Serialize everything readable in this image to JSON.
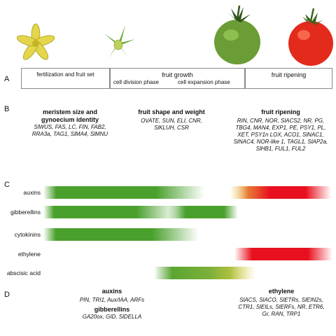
{
  "panels": {
    "a": "A",
    "b": "B",
    "c": "C",
    "d": "D"
  },
  "stages": {
    "fertilization": "fertilization and fruit set",
    "growth": "fruit growth",
    "division": "cell division phase",
    "expansion": "cell expansion phase",
    "ripening": "fruit ripening"
  },
  "panel_b": {
    "meristem_title_1": "meristem size and",
    "meristem_title_2": "gynoecium identity",
    "meristem_genes_1": "SlWUS, FAS, LC, FIN, FAB2,",
    "meristem_genes_2": "RRA3a, TAG1, SlMA4, SlMNU",
    "shape_title": "fruit shape and weight",
    "shape_genes_1": "OVATE, SUN, ELI, CNR,",
    "shape_genes_2": "SlKLUH, CSR",
    "ripening_title": "fruit ripening",
    "ripening_genes_1": "RIN, CNR, NOR, SlACS2, NR, PG,",
    "ripening_genes_2": "TBG4, MAN4, EXP1, PE, PSY1, PL,",
    "ripening_genes_3": "XET, PSY1n LOX, ACO1, SlNAC1,",
    "ripening_genes_4": "SlNAC4, NOR-like 1, TAGL1, SlAP2a,",
    "ripening_genes_5": "SlHB1, FUL1, FUL2"
  },
  "hormones": {
    "auxins": "auxins",
    "gibberellins": "gibberellins",
    "cytokinins": "cytokinins",
    "ethylene": "ethylene",
    "abscisic": "abscisic acid"
  },
  "colors": {
    "green": "#4aa02c",
    "yellow": "#e8d44a",
    "red": "#e8101e",
    "frame": "#888888"
  },
  "panel_d": {
    "auxins_title": "auxins",
    "auxins_genes": "PIN, TRI1, Aux/IAA, ARFs",
    "gib_title": "gibberellins",
    "gib_genes": "GA20ox, GID, SlDELLA",
    "eth_title": "ethylene",
    "eth_genes_1": "SlACS, SlACO, SlETRs, SlEIN2s,",
    "eth_genes_2": "CTR1, SlEILs, SlERFs, NR, ETR6,",
    "eth_genes_3": "Gr, RAN, TRP1"
  }
}
